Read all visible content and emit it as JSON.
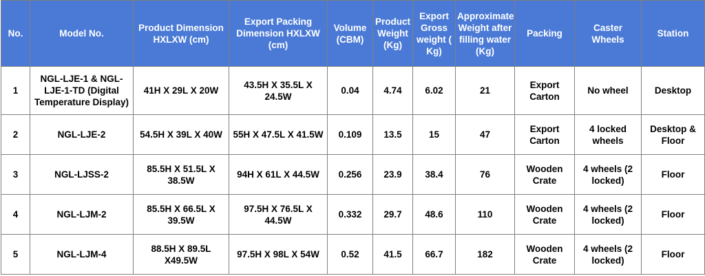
{
  "colors": {
    "header_bg": "#4a7ad6",
    "header_text": "#ffffff",
    "border": "#7f7f7f"
  },
  "headers": [
    "No.",
    "Model No.",
    "Product Dimension HXLXW (cm)",
    "Export Packing Dimension HXLXW (cm)",
    "Volume (CBM)",
    "Product Weight (Kg)",
    "Export Gross weight ( Kg)",
    "Approximate Weight after filling water (Kg)",
    "Packing",
    "Caster Wheels",
    "Station"
  ],
  "rows": [
    [
      "1",
      "NGL-LJE-1 & NGL-LJE-1-TD (Digital Temperature Display)",
      "41H X 29L X 20W",
      "43.5H X 35.5L X 24.5W",
      "0.04",
      "4.74",
      "6.02",
      "21",
      "Export Carton",
      "No wheel",
      "Desktop"
    ],
    [
      "2",
      "NGL-LJE-2",
      "54.5H X 39L X 40W",
      "55H X 47.5L X 41.5W",
      "0.109",
      "13.5",
      "15",
      "47",
      "Export Carton",
      "4 locked wheels",
      "Desktop & Floor"
    ],
    [
      "3",
      "NGL-LJSS-2",
      "85.5H X 51.5L X 38.5W",
      "94H X 61L X 44.5W",
      "0.256",
      "23.9",
      "38.4",
      "76",
      "Wooden Crate",
      "4 wheels (2 locked)",
      "Floor"
    ],
    [
      "4",
      "NGL-LJM-2",
      "85.5H X 66.5L X 39.5W",
      "97.5H X 76.5L X 44.5W",
      "0.332",
      "29.7",
      "48.6",
      "110",
      "Wooden Crate",
      "4 wheels (2 locked)",
      "Floor"
    ],
    [
      "5",
      "NGL-LJM-4",
      "88.5H X 89.5L X49.5W",
      "97.5H X 98L X 54W",
      "0.52",
      "41.5",
      "66.7",
      "182",
      "Wooden Crate",
      "4 wheels (2 locked)",
      "Floor"
    ]
  ]
}
